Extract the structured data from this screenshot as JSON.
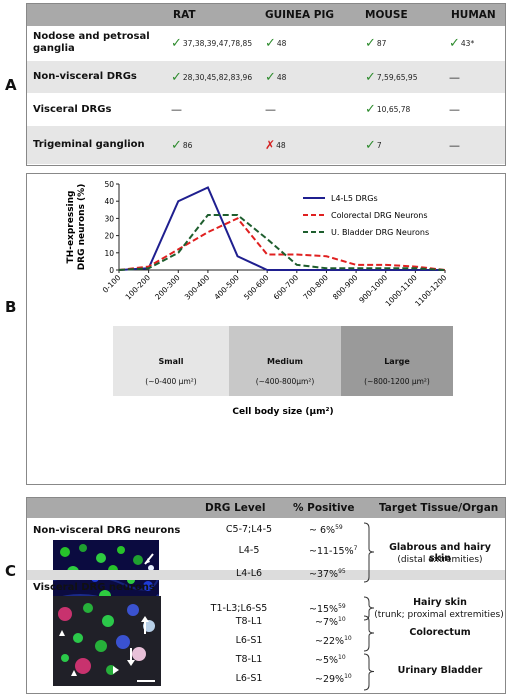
{
  "panel_labels": [
    "A",
    "B",
    "C"
  ],
  "panel_a": {
    "columns": [
      "RAT",
      "GUINEA PIG",
      "MOUSE",
      "HUMAN"
    ],
    "rows": [
      {
        "label": "Nodose and petrosal ganglia",
        "cells": [
          {
            "mark": "check",
            "refs": "37,38,39,47,78,85"
          },
          {
            "mark": "check",
            "refs": "48"
          },
          {
            "mark": "check",
            "refs": "87"
          },
          {
            "mark": "check",
            "refs": "43*"
          }
        ]
      },
      {
        "label": "Non-visceral DRGs",
        "cells": [
          {
            "mark": "check",
            "refs": "28,30,45,82,83,96"
          },
          {
            "mark": "check",
            "refs": "48"
          },
          {
            "mark": "check",
            "refs": "7,59,65,95"
          },
          {
            "mark": "dash",
            "refs": "—"
          }
        ]
      },
      {
        "label": "Visceral DRGs",
        "cells": [
          {
            "mark": "dash",
            "refs": "—"
          },
          {
            "mark": "dash",
            "refs": "—"
          },
          {
            "mark": "check",
            "refs": "10,65,78"
          },
          {
            "mark": "dash",
            "refs": "—"
          }
        ]
      },
      {
        "label": "Trigeminal ganglion",
        "cells": [
          {
            "mark": "check",
            "refs": "86"
          },
          {
            "mark": "cross",
            "refs": "48"
          },
          {
            "mark": "check",
            "refs": "7"
          },
          {
            "mark": "dash",
            "refs": "—"
          }
        ]
      }
    ]
  },
  "chart_data": {
    "type": "line",
    "ylabel": "TH-expressing DRG neurons (%)",
    "xlabel": "Cell body size (µm²)",
    "ylim": [
      0,
      50
    ],
    "yticks": [
      0,
      10,
      20,
      30,
      40,
      50
    ],
    "categories": [
      "0-100",
      "100-200",
      "200-300",
      "300-400",
      "400-500",
      "500-600",
      "600-700",
      "700-800",
      "800-900",
      "900-1000",
      "1000-1100",
      "1100-1200"
    ],
    "series": [
      {
        "name": "L4-L5 DRGs",
        "color": "#1f1f8f",
        "dash": "solid",
        "values": [
          0,
          1,
          40,
          48,
          8,
          0,
          0,
          0,
          0,
          0,
          0,
          0
        ]
      },
      {
        "name": "Colorectal DRG Neurons",
        "color": "#e02020",
        "dash": "dashed",
        "values": [
          0,
          2,
          12,
          22,
          30,
          9,
          9,
          8,
          3,
          3,
          2,
          0
        ]
      },
      {
        "name": "U. Bladder DRG Neurons",
        "color": "#1e5e2e",
        "dash": "dashed",
        "values": [
          0,
          1,
          10,
          32,
          32,
          18,
          3,
          1,
          1,
          1,
          1,
          0
        ]
      }
    ],
    "legend": "top-right",
    "size_groups": [
      {
        "name": "Small",
        "range": "(~0-400 µm²)",
        "color": "#e6e6e6"
      },
      {
        "name": "Medium",
        "range": "(~400-800µm²)",
        "color": "#c8c8c8"
      },
      {
        "name": "Large",
        "range": "(~800-1200 µm²)",
        "color": "#9a9a9a"
      }
    ]
  },
  "panel_c": {
    "columns": [
      "DRG Level",
      "% Positive",
      "Target Tissue/Organ"
    ],
    "nonvisceral": {
      "title": "Non-visceral DRG neurons",
      "rows": [
        {
          "level": "C5-7;L4-5",
          "pct": "~ 6%",
          "ref": "59"
        },
        {
          "level": "L4-5",
          "pct": "~11-15%",
          "ref": "7"
        },
        {
          "level": "L4-L6",
          "pct": "~37%",
          "ref": "95"
        },
        {
          "level": "T1-L3;L6-S5",
          "pct": "~15%",
          "ref": "59"
        }
      ],
      "targets": [
        {
          "title": "Glabrous and hairy skin",
          "sub": "(distal extremities)"
        },
        {
          "title": "Hairy skin",
          "sub": "(trunk; proximal extremities)"
        }
      ]
    },
    "visceral": {
      "title": "Visceral DRG neurons",
      "rows": [
        {
          "level": "T8-L1",
          "pct": "~7%",
          "ref": "10"
        },
        {
          "level": "L6-S1",
          "pct": "~22%",
          "ref": "10"
        },
        {
          "level": "T8-L1",
          "pct": "~5%",
          "ref": "10"
        },
        {
          "level": "L6-S1",
          "pct": "~29%",
          "ref": "10"
        }
      ],
      "targets": [
        {
          "title": "Colorectum"
        },
        {
          "title": "Urinary Bladder"
        }
      ]
    }
  }
}
